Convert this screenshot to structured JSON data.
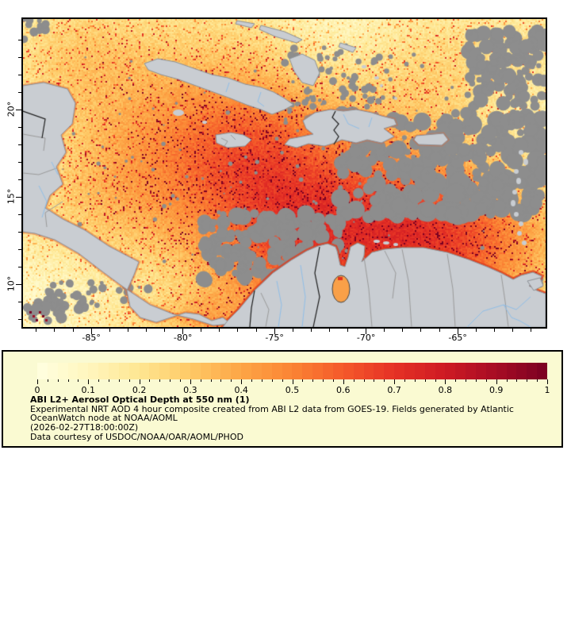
{
  "map": {
    "lon_ticks": [
      {
        "label": "-85°",
        "deg": -85
      },
      {
        "label": "-80°",
        "deg": -80
      },
      {
        "label": "-75°",
        "deg": -75
      },
      {
        "label": "-70°",
        "deg": -70
      },
      {
        "label": "-65°",
        "deg": -65
      }
    ],
    "lat_ticks": [
      {
        "label": "20°",
        "deg": 20
      },
      {
        "label": "15°",
        "deg": 15
      },
      {
        "label": "10°",
        "deg": 10
      }
    ]
  },
  "colorbar": {
    "min": 0,
    "max": 1,
    "tick_labels": [
      "0",
      "0.1",
      "0.2",
      "0.3",
      "0.4",
      "0.5",
      "0.6",
      "0.7",
      "0.8",
      "0.9",
      "1"
    ],
    "minor_step": 0.02
  },
  "caption": {
    "title": "ABI L2+ Aerosol Optical Depth at 550 nm (1)",
    "line2": "Experimental NRT AOD 4 hour composite created from ABI L2 data from GOES-19. Fields generated by Atlantic",
    "line3": "OceanWatch node at NOAA/AOML",
    "line4": "(2026-02-27T18:00:00Z)",
    "line5": "Data courtesy of USDOC/NOAA/OAR/AOML/PHOD"
  },
  "colors": {
    "legend_bg": "#FAFAD2",
    "land": "#C9CDD2",
    "land_outline": "#8C9196",
    "nodata": "#8D8D8D",
    "admin_border": "#9A9A9A",
    "country_border": "#1a1a1a",
    "river": "#8FBEE8",
    "coast_fringe": "rgba(224,58,28,0.8)",
    "aod_scale": [
      "#FFFFE0",
      "#FFF6BE",
      "#FEE691",
      "#FEC966",
      "#FDA546",
      "#FB8434",
      "#F4592A",
      "#E53125",
      "#CE1A23",
      "#A60C24",
      "#7A0022"
    ]
  }
}
